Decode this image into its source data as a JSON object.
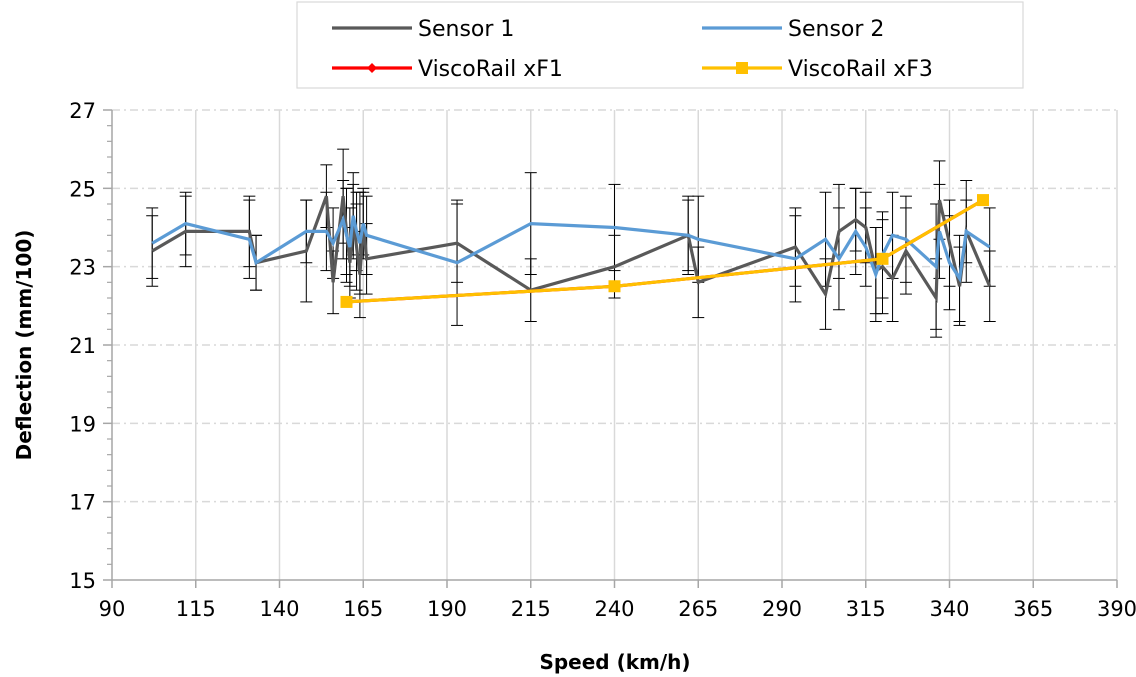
{
  "chart_data": {
    "type": "line",
    "xlabel": "Speed (km/h)",
    "ylabel": "Deflection (mm/100)",
    "xlim": [
      90,
      390
    ],
    "ylim": [
      15,
      27
    ],
    "xticks": [
      90,
      115,
      140,
      165,
      190,
      215,
      240,
      265,
      290,
      315,
      340,
      365,
      390
    ],
    "yticks": [
      15,
      17,
      19,
      21,
      23,
      25,
      27
    ],
    "x_tick_labels": [
      "90",
      "115",
      "140",
      "165",
      "190",
      "215",
      "240",
      "265",
      "290",
      "315",
      "340",
      "365",
      "390"
    ],
    "y_tick_labels": [
      "15",
      "17",
      "19",
      "21",
      "23",
      "25",
      "27"
    ],
    "grid": true,
    "legend_position": "top",
    "series": [
      {
        "name": "Sensor 1",
        "color": "#595959",
        "marker": "none",
        "x": [
          102,
          112,
          131,
          133,
          148,
          154,
          156,
          159,
          160,
          161,
          162,
          163,
          164,
          165,
          166,
          193,
          215,
          240,
          262,
          265,
          294,
          303,
          307,
          312,
          315,
          318,
          320,
          323,
          327,
          336,
          337,
          340,
          343,
          345,
          352
        ],
        "y": [
          23.4,
          23.9,
          23.9,
          23.1,
          23.4,
          24.8,
          22.6,
          24.8,
          23.9,
          23.1,
          24.2,
          23.5,
          22.8,
          24.1,
          23.2,
          23.6,
          22.4,
          23.0,
          23.8,
          22.6,
          23.5,
          22.3,
          23.9,
          24.2,
          24.0,
          22.9,
          23.0,
          22.7,
          23.4,
          22.2,
          24.7,
          23.6,
          22.5,
          23.9,
          22.5
        ],
        "error": [
          0.9,
          0.9,
          0.9,
          0.7,
          1.3,
          0.8,
          0.8,
          1.2,
          1.1,
          0.9,
          0.9,
          1.1,
          1.1,
          0.8,
          0.9,
          1.0,
          0.8,
          0.8,
          0.9,
          0.9,
          1.0,
          0.9,
          1.2,
          0.8,
          0.9,
          1.1,
          1.2,
          1.1,
          1.1,
          1.0,
          1.0,
          1.1,
          1.0,
          0.8,
          0.9
        ]
      },
      {
        "name": "Sensor 2",
        "color": "#5b9bd5",
        "marker": "none",
        "x": [
          102,
          112,
          131,
          133,
          148,
          154,
          156,
          159,
          160,
          161,
          162,
          163,
          164,
          165,
          166,
          193,
          215,
          240,
          262,
          265,
          294,
          303,
          307,
          312,
          315,
          318,
          320,
          323,
          327,
          336,
          337,
          340,
          343,
          345,
          352
        ],
        "y": [
          23.6,
          24.1,
          23.7,
          23.1,
          23.9,
          23.9,
          23.6,
          24.2,
          23.8,
          23.5,
          24.3,
          23.9,
          23.6,
          24.1,
          23.8,
          23.1,
          24.1,
          24.0,
          23.8,
          23.7,
          23.2,
          23.7,
          23.2,
          23.9,
          23.5,
          22.8,
          23.3,
          23.8,
          23.7,
          23.0,
          23.9,
          23.1,
          22.7,
          23.9,
          23.5
        ],
        "error": [
          0.9,
          0.8,
          1.0,
          0.7,
          0.8,
          1.0,
          0.9,
          1.0,
          1.2,
          1.0,
          1.1,
          1.0,
          1.3,
          0.9,
          1.0,
          1.6,
          1.3,
          1.1,
          1.0,
          1.1,
          1.1,
          1.2,
          1.3,
          1.1,
          1.0,
          1.2,
          1.1,
          1.1,
          1.1,
          1.6,
          1.2,
          1.2,
          1.1,
          1.3,
          1.0
        ]
      },
      {
        "name": "ViscoRail xF1",
        "color": "#ff0000",
        "marker": "diamond",
        "x": [
          160,
          240,
          320,
          350
        ],
        "y": [
          22.1,
          22.5,
          23.2,
          24.7
        ]
      },
      {
        "name": "ViscoRail xF3",
        "color": "#ffc000",
        "marker": "square",
        "x": [
          160,
          240,
          320,
          350
        ],
        "y": [
          22.1,
          22.5,
          23.2,
          24.7
        ]
      }
    ]
  }
}
